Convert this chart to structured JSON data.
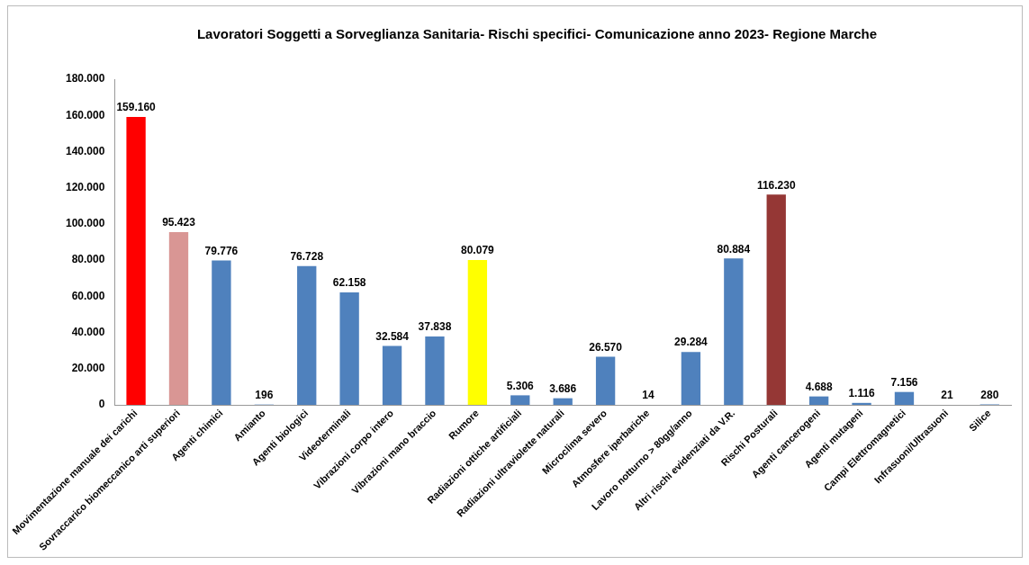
{
  "chart_data": {
    "type": "bar",
    "title": "Lavoratori Soggetti a Sorveglianza Sanitaria- Rischi specifici- Comunicazione anno 2023- Regione Marche",
    "categories": [
      "Movimentazione manuale dei carichi",
      "Sovraccarico biomeccanico arti superiori",
      "Agenti chimici",
      "Amianto",
      "Agenti biologici",
      "Videoterminali",
      "Vibrazioni corpo intero",
      "Vibrazioni mano braccio",
      "Rumore",
      "Radiazioni ottiche artificiali",
      "Radiazioni ultraviolette naturali",
      "Microclima severo",
      "Atmosfere iperbariche",
      "Lavoro notturno > 80gg/anno",
      "Altri rischi evidenziati da V.R.",
      "Rischi Posturali",
      "Agenti cancerogeni",
      "Agenti mutageni",
      "Campi Elettromagnetici",
      "Infrasuoni/Ultrasuoni",
      "Silice"
    ],
    "values": [
      159160,
      95423,
      79776,
      196,
      76728,
      62158,
      32584,
      37838,
      80079,
      5306,
      3686,
      26570,
      14,
      29284,
      80884,
      116230,
      4688,
      1116,
      7156,
      21,
      280
    ],
    "value_labels": [
      "159.160",
      "95.423",
      "79.776",
      "196",
      "76.728",
      "62.158",
      "32.584",
      "37.838",
      "80.079",
      "5.306",
      "3.686",
      "26.570",
      "14",
      "29.284",
      "80.884",
      "116.230",
      "4.688",
      "1.116",
      "7.156",
      "21",
      "280"
    ],
    "colors": [
      "#ff0000",
      "#d99694",
      "#4f81bd",
      "#4f81bd",
      "#4f81bd",
      "#4f81bd",
      "#4f81bd",
      "#4f81bd",
      "#ffff00",
      "#4f81bd",
      "#4f81bd",
      "#4f81bd",
      "#4f81bd",
      "#4f81bd",
      "#4f81bd",
      "#953735",
      "#4f81bd",
      "#4f81bd",
      "#4f81bd",
      "#4f81bd",
      "#4f81bd"
    ],
    "ylim": [
      0,
      180000
    ],
    "yticks": [
      {
        "value": 0,
        "label": "0"
      },
      {
        "value": 20000,
        "label": "20.000"
      },
      {
        "value": 40000,
        "label": "40.000"
      },
      {
        "value": 60000,
        "label": "60.000"
      },
      {
        "value": 80000,
        "label": "80.000"
      },
      {
        "value": 100000,
        "label": "100.000"
      },
      {
        "value": 120000,
        "label": "120.000"
      },
      {
        "value": 140000,
        "label": "140.000"
      },
      {
        "value": 160000,
        "label": "160.000"
      },
      {
        "value": 180000,
        "label": "180.000"
      }
    ],
    "grid": false,
    "legend": false
  }
}
